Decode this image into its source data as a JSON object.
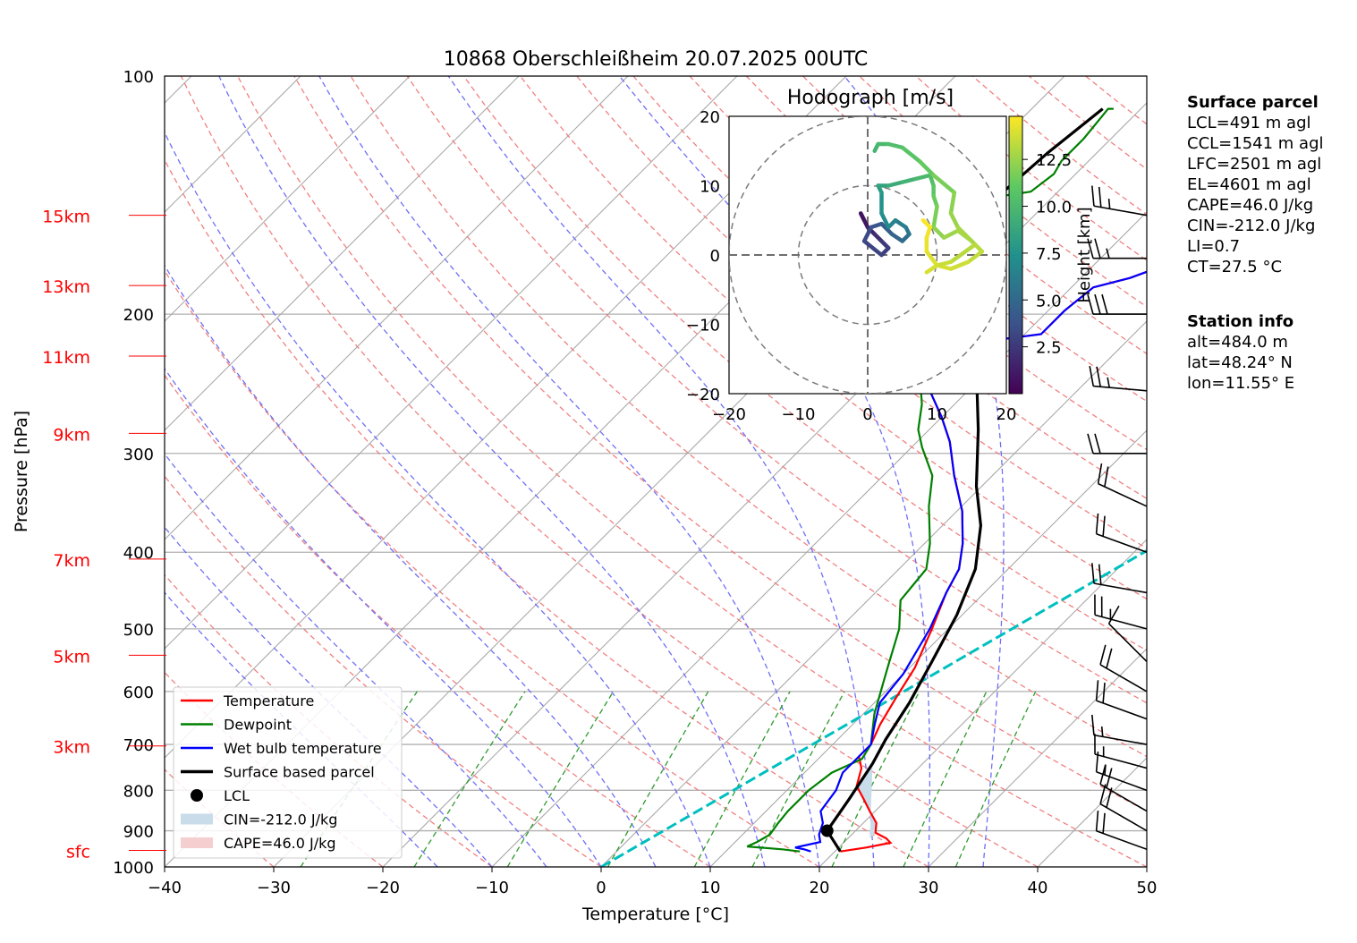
{
  "chart_data": {
    "type": "line",
    "title": "10868 Oberschleißheim 20.07.2025 00UTC",
    "xlabel": "Temperature [°C]",
    "ylabel": "Pressure [hPa]",
    "xlim": [
      -40,
      50
    ],
    "ylim": [
      1000,
      100
    ],
    "y_scale": "log",
    "x_ticks": [
      -40,
      -30,
      -20,
      -10,
      0,
      10,
      20,
      30,
      40,
      50
    ],
    "x_tick_labels": [
      "−40",
      "−30",
      "−20",
      "−10",
      "0",
      "10",
      "20",
      "30",
      "40",
      "50"
    ],
    "y_ticks": [
      1000,
      900,
      800,
      700,
      600,
      500,
      400,
      300,
      200,
      100
    ],
    "grid": true,
    "height_labels": [
      {
        "label": "15km",
        "p": 150
      },
      {
        "label": "13km",
        "p": 184
      },
      {
        "label": "11km",
        "p": 226
      },
      {
        "label": "9km",
        "p": 283
      },
      {
        "label": "7km",
        "p": 408
      },
      {
        "label": "5km",
        "p": 540
      },
      {
        "label": "3km",
        "p": 703
      },
      {
        "label": "sfc",
        "p": 953
      }
    ],
    "series": [
      {
        "name": "Temperature",
        "color": "#ff0000",
        "points": [
          [
            20.5,
            956
          ],
          [
            22.5,
            945
          ],
          [
            24.3,
            932
          ],
          [
            23.5,
            920
          ],
          [
            22,
            905
          ],
          [
            21.2,
            880
          ],
          [
            19.5,
            850
          ],
          [
            17.8,
            820
          ],
          [
            16,
            790
          ],
          [
            14.8,
            750
          ],
          [
            13.5,
            725
          ],
          [
            13.5,
            700
          ],
          [
            12.5,
            660
          ],
          [
            11.5,
            610
          ],
          [
            10.5,
            560
          ],
          [
            8.5,
            500
          ],
          [
            6.5,
            450
          ],
          [
            5.5,
            420
          ],
          [
            3.5,
            390
          ],
          [
            0.5,
            355
          ],
          [
            -3.5,
            320
          ],
          [
            -7,
            290
          ],
          [
            -10,
            270
          ],
          [
            -13.5,
            250
          ],
          [
            -15.5,
            235
          ],
          [
            -12.5,
            216
          ],
          [
            -8.5,
            212
          ],
          [
            -8.5,
            198
          ],
          [
            -8,
            185
          ],
          [
            -5.5,
            180
          ],
          [
            -3,
            172
          ],
          [
            -2.5,
            165
          ],
          [
            0,
            162
          ],
          [
            0.5,
            155
          ],
          [
            1.8,
            150
          ],
          [
            2.5,
            140
          ],
          [
            3.5,
            130
          ],
          [
            5,
            120
          ],
          [
            5.5,
            110
          ],
          [
            6,
            108
          ]
        ]
      },
      {
        "name": "Dewpoint",
        "color": "#008000",
        "points": [
          [
            16.8,
            956
          ],
          [
            15,
            950
          ],
          [
            11.5,
            942
          ],
          [
            12,
            930
          ],
          [
            12.5,
            910
          ],
          [
            12.2,
            880
          ],
          [
            12,
            850
          ],
          [
            12,
            800
          ],
          [
            12.5,
            760
          ],
          [
            14,
            730
          ],
          [
            13.5,
            700
          ],
          [
            11,
            640
          ],
          [
            8,
            560
          ],
          [
            5.5,
            500
          ],
          [
            3,
            460
          ],
          [
            2.5,
            420
          ],
          [
            0.5,
            390
          ],
          [
            -3,
            350
          ],
          [
            -5.5,
            320
          ],
          [
            -9,
            295
          ],
          [
            -11,
            280
          ],
          [
            -13,
            260
          ],
          [
            -15,
            245
          ],
          [
            -17.5,
            226
          ],
          [
            -19.5,
            215
          ],
          [
            -22.5,
            212
          ],
          [
            -22,
            205
          ],
          [
            -23.5,
            200
          ],
          [
            -27,
            195
          ],
          [
            -29.5,
            190
          ],
          [
            -29.5,
            180
          ],
          [
            -29.5,
            170
          ],
          [
            -28.5,
            165
          ],
          [
            -27.5,
            160
          ],
          [
            -27,
            155
          ],
          [
            -25.5,
            148
          ],
          [
            -25,
            142
          ],
          [
            -22.5,
            140
          ],
          [
            -22,
            133
          ],
          [
            -22.5,
            128
          ],
          [
            -22.5,
            120
          ],
          [
            -23,
            110
          ],
          [
            -22.5,
            110
          ]
        ]
      },
      {
        "name": "Wet bulb temperature",
        "color": "#0000ff",
        "points": [
          [
            17.8,
            956
          ],
          [
            17,
            950
          ],
          [
            16,
            945
          ],
          [
            17.8,
            930
          ],
          [
            17,
            910
          ],
          [
            16.3,
            880
          ],
          [
            15,
            850
          ],
          [
            14.5,
            800
          ],
          [
            13.5,
            760
          ],
          [
            13.5,
            700
          ],
          [
            12,
            660
          ],
          [
            10.5,
            620
          ],
          [
            10,
            570
          ],
          [
            8.3,
            500
          ],
          [
            6.5,
            450
          ],
          [
            5.5,
            420
          ],
          [
            3.5,
            390
          ],
          [
            0.5,
            355
          ],
          [
            -3.5,
            320
          ],
          [
            -7,
            290
          ],
          [
            -10,
            270
          ],
          [
            -13.5,
            250
          ],
          [
            -15.5,
            235
          ],
          [
            -12.5,
            216
          ],
          [
            -8.5,
            212
          ],
          [
            -8.5,
            198
          ],
          [
            -8,
            185
          ],
          [
            -5.5,
            180
          ],
          [
            -3,
            172
          ],
          [
            -2.5,
            165
          ],
          [
            0,
            162
          ],
          [
            0.5,
            155
          ],
          [
            1.8,
            150
          ],
          [
            2.5,
            140
          ],
          [
            3.5,
            130
          ],
          [
            5,
            120
          ],
          [
            5.5,
            110
          ],
          [
            6,
            108
          ]
        ]
      },
      {
        "name": "Surface based parcel",
        "color": "#000000",
        "points": [
          [
            20.5,
            956
          ],
          [
            17.4,
            900
          ],
          [
            16.5,
            820
          ],
          [
            15.4,
            740
          ],
          [
            14.4,
            690
          ],
          [
            13.2,
            620
          ],
          [
            11.5,
            550
          ],
          [
            9.5,
            480
          ],
          [
            7,
            420
          ],
          [
            3.5,
            370
          ],
          [
            -0.5,
            330
          ],
          [
            -5.5,
            280
          ],
          [
            -10.5,
            240
          ],
          [
            -15.7,
            212
          ],
          [
            -19.5,
            190
          ],
          [
            -23,
            160
          ],
          [
            -25,
            140
          ],
          [
            -24.5,
            125
          ],
          [
            -23.5,
            110
          ]
        ]
      }
    ],
    "lcl": {
      "t": 17.4,
      "p": 900
    },
    "cin_area": {
      "label": "CIN=-212.0 J/kg",
      "parcel": [
        [
          17.4,
          900
        ],
        [
          17.1,
          870
        ],
        [
          16.8,
          840
        ],
        [
          16.5,
          820
        ],
        [
          16.2,
          790
        ],
        [
          15.8,
          760
        ],
        [
          15.4,
          740
        ]
      ],
      "env": [
        [
          15.4,
          740
        ],
        [
          16,
          790
        ],
        [
          17.8,
          820
        ],
        [
          19.5,
          850
        ],
        [
          21.2,
          880
        ],
        [
          22,
          905
        ],
        [
          22,
          920
        ]
      ]
    },
    "cape_label": "CAPE=46.0 J/kg",
    "freezing_level": {
      "color": "#00bfbf",
      "start": [
        0,
        1000
      ],
      "end": [
        50,
        112
      ]
    },
    "legend": {
      "position": "lower-left",
      "entries": [
        "Temperature",
        "Dewpoint",
        "Wet bulb temperature",
        "Surface based parcel",
        "LCL",
        "CIN=-212.0 J/kg",
        "CAPE=46.0 J/kg"
      ]
    },
    "hodograph": {
      "title": "Hodograph [m/s]",
      "xlim": [
        -20,
        20
      ],
      "ylim": [
        -20,
        20
      ],
      "ticks": [
        -20,
        -10,
        0,
        10,
        20
      ],
      "tick_labels": [
        "−20",
        "−10",
        "0",
        "10",
        "20"
      ],
      "colorbar_label": "Height [km]",
      "colorbar_ticks": [
        2.5,
        5.0,
        7.5,
        10.0,
        12.5
      ],
      "height_range": [
        0,
        14.8
      ],
      "points": [
        [
          -0.5,
          5,
          0.5
        ],
        [
          -1,
          6,
          0.6
        ],
        [
          0,
          4,
          1.2
        ],
        [
          1,
          3,
          1.8
        ],
        [
          2,
          2,
          2.3
        ],
        [
          3,
          1,
          2.7
        ],
        [
          2,
          0,
          3.0
        ],
        [
          -0.5,
          2,
          3.2
        ],
        [
          0.5,
          4,
          3.6
        ],
        [
          2,
          4.5,
          4.1
        ],
        [
          3.5,
          3,
          4.6
        ],
        [
          5,
          2,
          5.1
        ],
        [
          6,
          3,
          5.6
        ],
        [
          5.5,
          4,
          6.0
        ],
        [
          4,
          5,
          6.4
        ],
        [
          3,
          4,
          6.8
        ],
        [
          2,
          6,
          7.3
        ],
        [
          2,
          9,
          7.8
        ],
        [
          1.5,
          10,
          8.3
        ],
        [
          3,
          10,
          8.8
        ],
        [
          5,
          10.5,
          9.3
        ],
        [
          7,
          11,
          9.8
        ],
        [
          9,
          11.5,
          10.2
        ],
        [
          9.5,
          10,
          10.6
        ],
        [
          9.5,
          8.5,
          11.1
        ],
        [
          10,
          7,
          11.6
        ],
        [
          9.5,
          4,
          12.0
        ],
        [
          11,
          2.5,
          12.4
        ],
        [
          13,
          3.5,
          12.7
        ],
        [
          15,
          2,
          13.0
        ],
        [
          16.5,
          0.5,
          13.3
        ],
        [
          14.5,
          -1,
          13.6
        ],
        [
          12,
          -2,
          13.8
        ],
        [
          10,
          -1.5,
          14.0
        ],
        [
          8.5,
          0.5,
          14.2
        ],
        [
          8.5,
          2.5,
          14.4
        ],
        [
          9,
          4,
          14.6
        ],
        [
          8,
          5,
          14.8
        ]
      ],
      "points_upper": [
        [
          1,
          15,
          9.5
        ],
        [
          1.5,
          16,
          9.8
        ],
        [
          3,
          16,
          10.2
        ],
        [
          5,
          15.5,
          10.5
        ],
        [
          7.5,
          13.5,
          11.0
        ],
        [
          9.5,
          11.5,
          11.4
        ],
        [
          12.5,
          9,
          12.0
        ],
        [
          12,
          6,
          12.3
        ],
        [
          13,
          4,
          12.6
        ],
        [
          15.5,
          1.5,
          13.0
        ],
        [
          12,
          -1,
          13.4
        ],
        [
          10,
          -1.5,
          13.8
        ],
        [
          8.5,
          -2.5,
          14.0
        ]
      ]
    },
    "wind_barbs": {
      "units": "kt",
      "barbs": [
        {
          "p": 950,
          "speed": 20,
          "dir": 250
        },
        {
          "p": 900,
          "speed": 20,
          "dir": 240
        },
        {
          "p": 850,
          "speed": 20,
          "dir": 240
        },
        {
          "p": 800,
          "speed": 15,
          "dir": 250
        },
        {
          "p": 750,
          "speed": 15,
          "dir": 255
        },
        {
          "p": 700,
          "speed": 15,
          "dir": 260
        },
        {
          "p": 650,
          "speed": 20,
          "dir": 250
        },
        {
          "p": 600,
          "speed": 20,
          "dir": 240
        },
        {
          "p": 550,
          "speed": 10,
          "dir": 225
        },
        {
          "p": 500,
          "speed": 25,
          "dir": 255
        },
        {
          "p": 450,
          "speed": 20,
          "dir": 260
        },
        {
          "p": 400,
          "speed": 20,
          "dir": 250
        },
        {
          "p": 350,
          "speed": 20,
          "dir": 245
        },
        {
          "p": 300,
          "speed": 20,
          "dir": 270
        },
        {
          "p": 250,
          "speed": 25,
          "dir": 265
        },
        {
          "p": 200,
          "speed": 30,
          "dir": 270
        },
        {
          "p": 170,
          "speed": 25,
          "dir": 270
        },
        {
          "p": 150,
          "speed": 25,
          "dir": 260
        }
      ]
    }
  },
  "info": {
    "surface_header": "Surface parcel",
    "surface_lines": [
      "LCL=491 m agl",
      "CCL=1541 m agl",
      "LFC=2501 m agl",
      "EL=4601 m agl",
      "CAPE=46.0 J/kg",
      "CIN=-212.0 J/kg",
      "LI=0.7",
      "CT=27.5 °C"
    ],
    "station_header": "Station info",
    "station_lines": [
      "alt=484.0 m",
      "lat=48.24° N",
      "lon=11.55° E"
    ]
  }
}
